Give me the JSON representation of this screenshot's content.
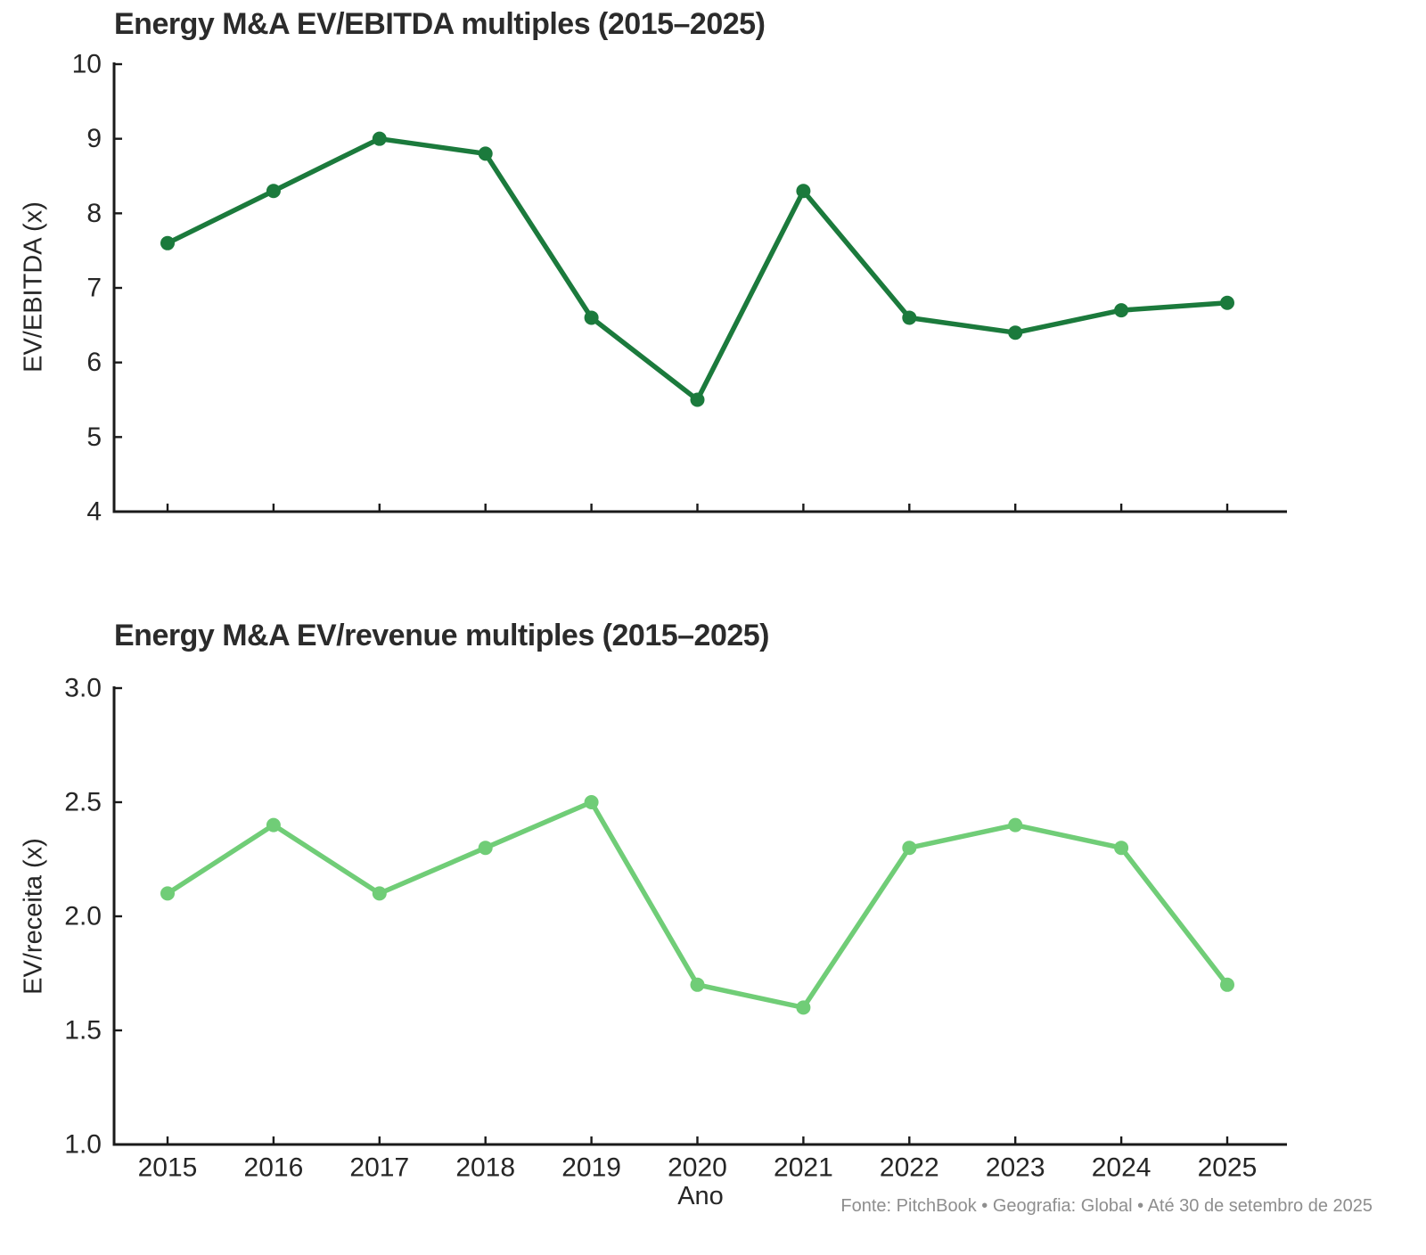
{
  "style": {
    "background": "#ffffff",
    "axis_color": "#1a1a1a",
    "tick_label_color": "#262626",
    "title_color": "#2b2b2b",
    "footer_color": "#8e8e8e",
    "accent_dark_green": "#1b7a3c",
    "accent_light_green": "#70cd77"
  },
  "footer": {
    "text": "Fonte: PitchBook  •  Geografia: Global  •  Até 30 de setembro de 2025"
  },
  "chart_data": [
    {
      "type": "line",
      "name": "ev-ebitda-chart",
      "title": "Energy M&A EV/EBITDA multiples (2015–2025)",
      "xlabel": "",
      "ylabel": "EV/EBITDA (x)",
      "x": [
        2015,
        2016,
        2017,
        2018,
        2019,
        2020,
        2021,
        2022,
        2023,
        2024,
        2025
      ],
      "series": [
        {
          "name": "EV/EBITDA",
          "values": [
            7.6,
            8.3,
            9.0,
            8.8,
            6.6,
            5.5,
            8.3,
            6.6,
            6.4,
            6.7,
            6.8
          ],
          "color": "#1b7a3c"
        }
      ],
      "ylim": [
        4,
        10
      ],
      "yticks": [
        {
          "value": 10,
          "label": "10"
        },
        {
          "value": 9,
          "label": "9"
        },
        {
          "value": 8,
          "label": "8"
        },
        {
          "value": 7,
          "label": "7"
        },
        {
          "value": 6,
          "label": "6"
        },
        {
          "value": 5,
          "label": "5"
        },
        {
          "value": 4,
          "label": "4"
        }
      ],
      "show_x_tick_labels": false,
      "grid": false,
      "legend": "none"
    },
    {
      "type": "line",
      "name": "ev-revenue-chart",
      "title": "Energy M&A EV/revenue multiples (2015–2025)",
      "xlabel": "Ano",
      "ylabel": "EV/receita (x)",
      "x": [
        2015,
        2016,
        2017,
        2018,
        2019,
        2020,
        2021,
        2022,
        2023,
        2024,
        2025
      ],
      "series": [
        {
          "name": "EV/receita",
          "values": [
            2.1,
            2.4,
            2.1,
            2.3,
            2.5,
            1.7,
            1.6,
            2.3,
            2.4,
            2.3,
            1.7
          ],
          "color": "#70cd77"
        }
      ],
      "ylim": [
        1.0,
        3.0
      ],
      "yticks": [
        {
          "value": 3.0,
          "label": "3.0"
        },
        {
          "value": 2.5,
          "label": "2.5"
        },
        {
          "value": 2.0,
          "label": "2.0"
        },
        {
          "value": 1.5,
          "label": "1.5"
        },
        {
          "value": 1.0,
          "label": "1.0"
        }
      ],
      "show_x_tick_labels": true,
      "grid": false,
      "legend": "none"
    }
  ]
}
